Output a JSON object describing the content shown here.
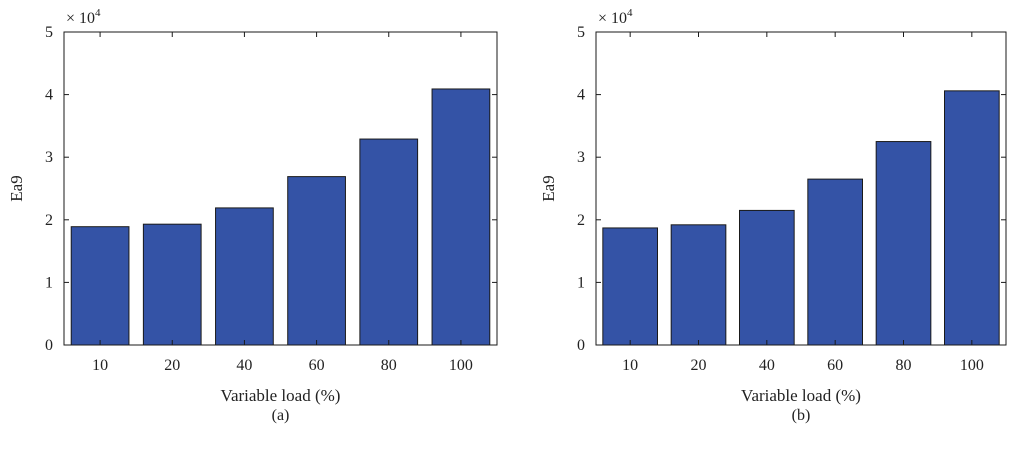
{
  "colors": {
    "bar_fill": "#3453a6",
    "bar_stroke": "#1a1a1a",
    "axis": "#1a1a1a",
    "text": "#222222"
  },
  "chart_data": [
    {
      "type": "bar",
      "caption": "(a)",
      "categories": [
        "10",
        "20",
        "40",
        "60",
        "80",
        "100"
      ],
      "values": [
        18900,
        19300,
        21900,
        26900,
        32900,
        40900
      ],
      "xlabel": "Variable load (%)",
      "ylabel": "Ea9",
      "ylim": [
        0,
        50000
      ],
      "yticks": [
        0,
        10000,
        20000,
        30000,
        40000,
        50000
      ],
      "ytick_labels": [
        "0",
        "1",
        "2",
        "3",
        "4",
        "5"
      ],
      "multiplier_base": "× 10",
      "multiplier_exp": "4",
      "grid": false,
      "legend": "none"
    },
    {
      "type": "bar",
      "caption": "(b)",
      "categories": [
        "10",
        "20",
        "40",
        "60",
        "80",
        "100"
      ],
      "values": [
        18700,
        19200,
        21500,
        26500,
        32500,
        40600
      ],
      "xlabel": "Variable load (%)",
      "ylabel": "Ea9",
      "ylim": [
        0,
        50000
      ],
      "yticks": [
        0,
        10000,
        20000,
        30000,
        40000,
        50000
      ],
      "ytick_labels": [
        "0",
        "1",
        "2",
        "3",
        "4",
        "5"
      ],
      "multiplier_base": "× 10",
      "multiplier_exp": "4",
      "grid": false,
      "legend": "none"
    }
  ]
}
